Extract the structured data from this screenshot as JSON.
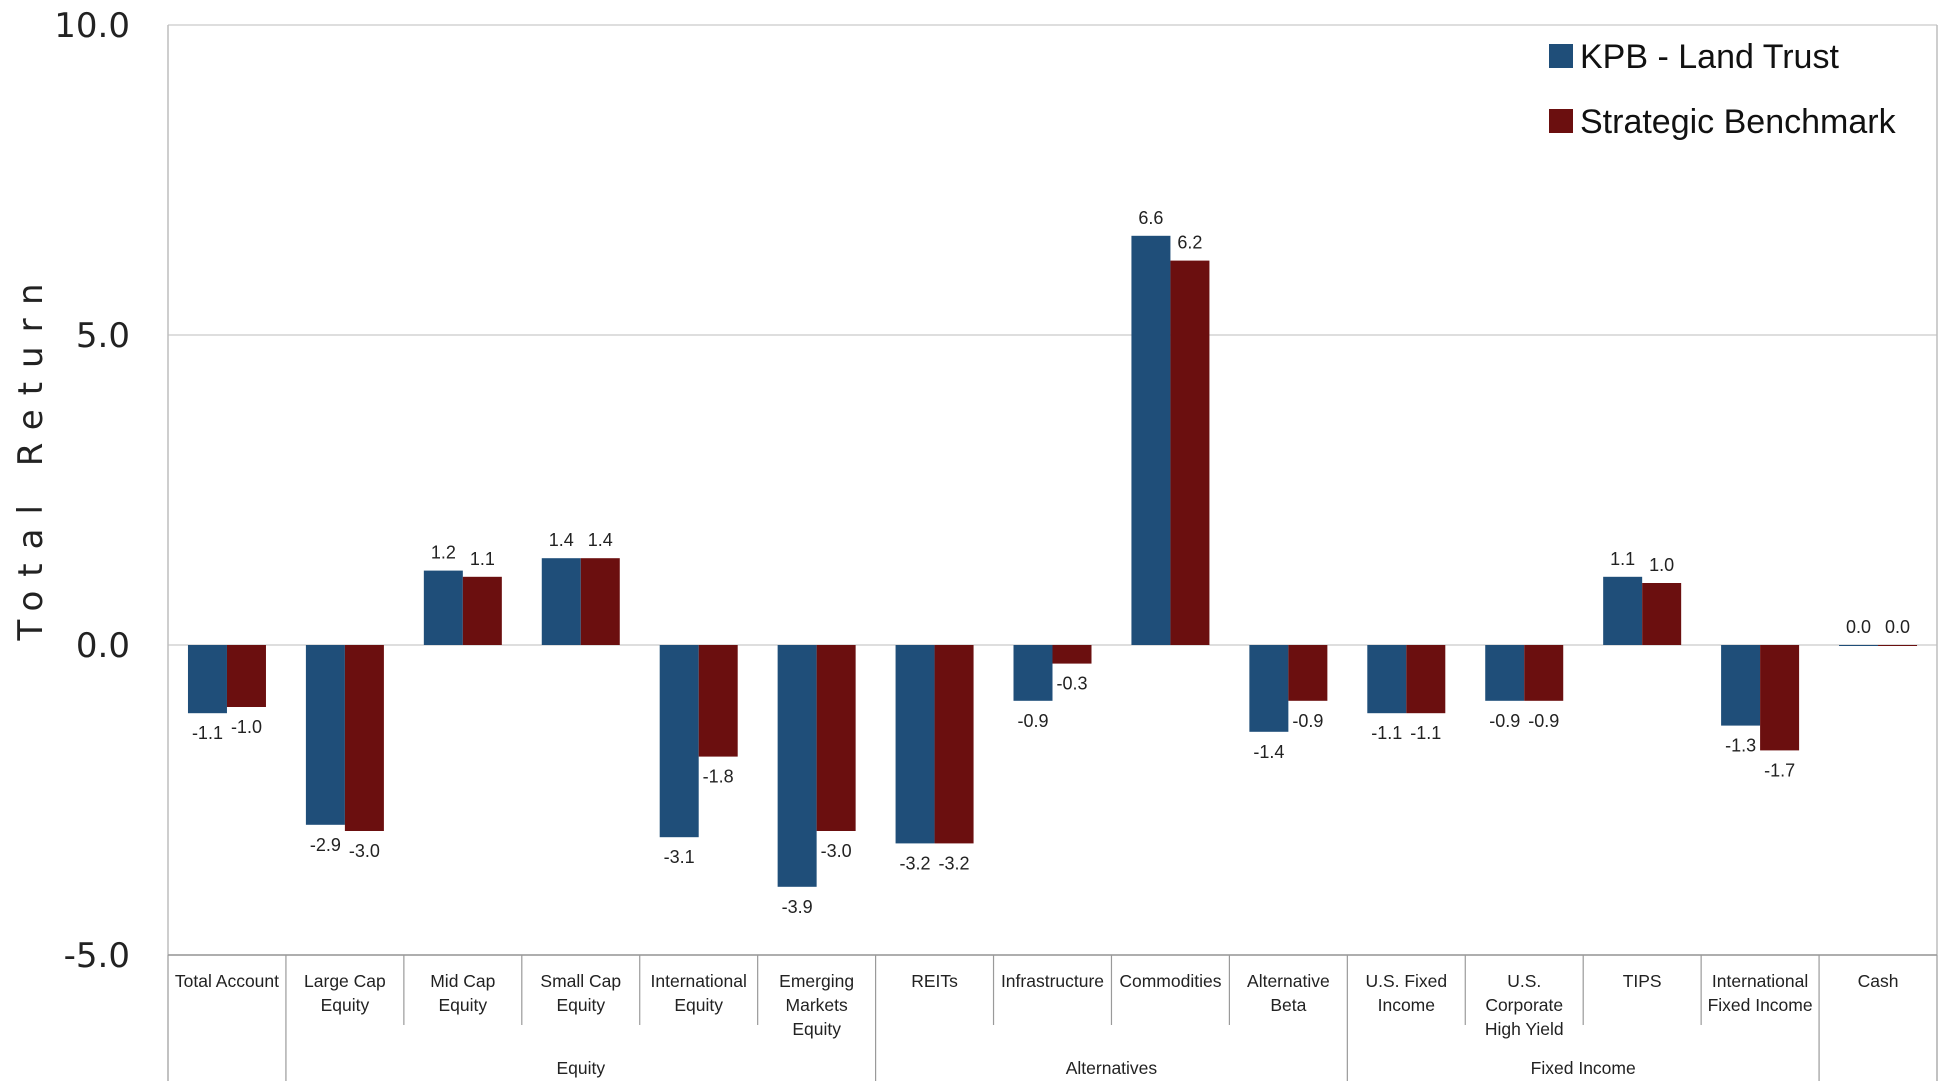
{
  "chart_data": {
    "type": "bar",
    "ylabel": "Total Return",
    "ylim": [
      -5.0,
      10.0
    ],
    "yticks": [
      "-5.0",
      "0.0",
      "5.0",
      "10.0"
    ],
    "grid": true,
    "legend_position": "top-right",
    "categories": [
      "Total Account",
      "Large Cap Equity",
      "Mid Cap Equity",
      "Small Cap Equity",
      "International Equity",
      "Emerging Markets Equity",
      "REITs",
      "Infrastructure",
      "Commodities",
      "Alternative Beta",
      "U.S. Fixed Income",
      "U.S. Corporate High Yield",
      "TIPS",
      "International Fixed Income",
      "Cash"
    ],
    "category_lines": [
      [
        "Total Account"
      ],
      [
        "Large Cap",
        "Equity"
      ],
      [
        "Mid Cap",
        "Equity"
      ],
      [
        "Small Cap",
        "Equity"
      ],
      [
        "International",
        "Equity"
      ],
      [
        "Emerging",
        "Markets",
        "Equity"
      ],
      [
        "REITs"
      ],
      [
        "Infrastructure"
      ],
      [
        "Commodities"
      ],
      [
        "Alternative",
        "Beta"
      ],
      [
        "U.S. Fixed",
        "Income"
      ],
      [
        "U.S.",
        "Corporate",
        "High Yield"
      ],
      [
        "TIPS"
      ],
      [
        "International",
        "Fixed Income"
      ],
      [
        "Cash"
      ]
    ],
    "groups": [
      {
        "label": "Equity",
        "start": 1,
        "end": 5
      },
      {
        "label": "Alternatives",
        "start": 6,
        "end": 9
      },
      {
        "label": "Fixed Income",
        "start": 10,
        "end": 13
      }
    ],
    "series": [
      {
        "name": "KPB - Land Trust",
        "color": "#1f4e79",
        "values": [
          -1.1,
          -2.9,
          1.2,
          1.4,
          -3.1,
          -3.9,
          -3.2,
          -0.9,
          6.6,
          -1.4,
          -1.1,
          -0.9,
          1.1,
          -1.3,
          0.0
        ]
      },
      {
        "name": "Strategic Benchmark",
        "color": "#6b0f0f",
        "values": [
          -1.0,
          -3.0,
          1.1,
          1.4,
          -1.8,
          -3.0,
          -3.2,
          -0.3,
          6.2,
          -0.9,
          -1.1,
          -0.9,
          1.0,
          -1.7,
          0.0
        ]
      }
    ]
  }
}
